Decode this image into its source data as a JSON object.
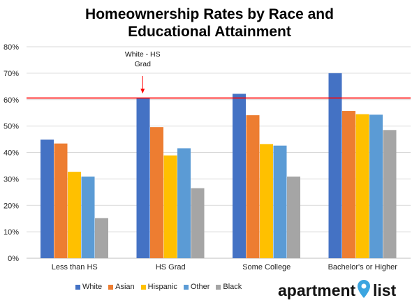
{
  "chart_data": {
    "type": "bar",
    "title_line1": "Homeownership Rates by Race and",
    "title_line2": "Educational Attainment",
    "categories": [
      "Less than HS",
      "HS Grad",
      "Some College",
      "Bachelor's or Higher"
    ],
    "series": [
      {
        "name": "White",
        "color": "#4472C4",
        "values": [
          44.9,
          60.5,
          62.2,
          70.0
        ]
      },
      {
        "name": "Asian",
        "color": "#ED7D31",
        "values": [
          43.4,
          49.6,
          54.1,
          55.7
        ]
      },
      {
        "name": "Hispanic",
        "color": "#FFC000",
        "values": [
          32.7,
          38.9,
          43.2,
          54.5
        ]
      },
      {
        "name": "Other",
        "color": "#5B9BD5",
        "values": [
          30.9,
          41.6,
          42.6,
          54.3
        ]
      },
      {
        "name": "Black",
        "color": "#A5A5A5",
        "values": [
          15.2,
          26.5,
          30.9,
          48.5
        ]
      }
    ],
    "ylim": [
      0,
      80
    ],
    "yticks": [
      0,
      10,
      20,
      30,
      40,
      50,
      60,
      70,
      80
    ],
    "ytick_labels": [
      "0%",
      "10%",
      "20%",
      "30%",
      "40%",
      "50%",
      "60%",
      "70%",
      "80%"
    ],
    "reference_line": {
      "value": 60.6,
      "color": "#FF0000"
    },
    "annotation": {
      "line1": "White - HS",
      "line2": "Grad",
      "category_index": 1,
      "series_index": 0,
      "arrow_color": "#FF0000"
    },
    "legend_position": "bottom"
  },
  "branding": {
    "part1": "apartment",
    "part2": "list",
    "pin_color": "#3BA5E0"
  }
}
